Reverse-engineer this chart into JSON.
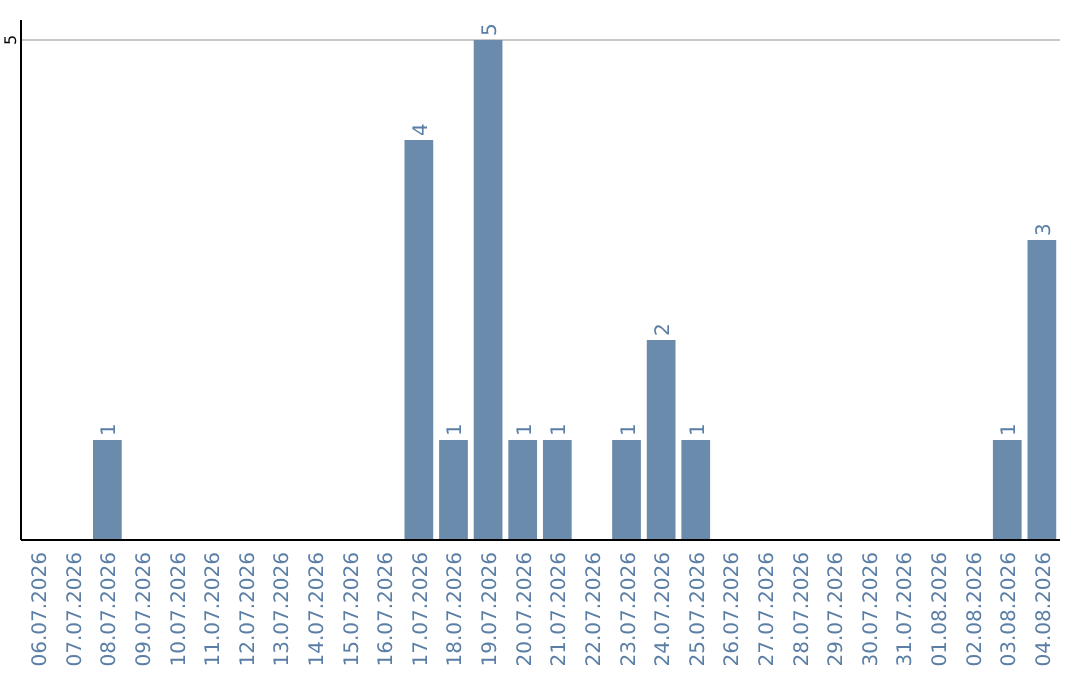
{
  "chart_data": {
    "type": "bar",
    "categories": [
      "06.07.2026",
      "07.07.2026",
      "08.07.2026",
      "09.07.2026",
      "10.07.2026",
      "11.07.2026",
      "12.07.2026",
      "13.07.2026",
      "14.07.2026",
      "15.07.2026",
      "16.07.2026",
      "17.07.2026",
      "18.07.2026",
      "19.07.2026",
      "20.07.2026",
      "21.07.2026",
      "22.07.2026",
      "23.07.2026",
      "24.07.2026",
      "25.07.2026",
      "26.07.2026",
      "27.07.2026",
      "28.07.2026",
      "29.07.2026",
      "30.07.2026",
      "31.07.2026",
      "01.08.2026",
      "02.08.2026",
      "03.08.2026",
      "04.08.2026"
    ],
    "values": [
      0,
      0,
      1,
      0,
      0,
      0,
      0,
      0,
      0,
      0,
      0,
      4,
      1,
      5,
      1,
      1,
      0,
      1,
      2,
      1,
      0,
      0,
      0,
      0,
      0,
      0,
      0,
      0,
      1,
      3
    ],
    "value_labels": [
      null,
      null,
      "1",
      null,
      null,
      null,
      null,
      null,
      null,
      null,
      null,
      "4",
      "1",
      "5",
      "1",
      "1",
      null,
      "1",
      "2",
      "1",
      null,
      null,
      null,
      null,
      null,
      null,
      null,
      null,
      "1",
      "3"
    ],
    "color": "#6a8bab",
    "ylim": [
      0,
      5.2
    ],
    "yticks": [
      5
    ],
    "grid": "y"
  }
}
